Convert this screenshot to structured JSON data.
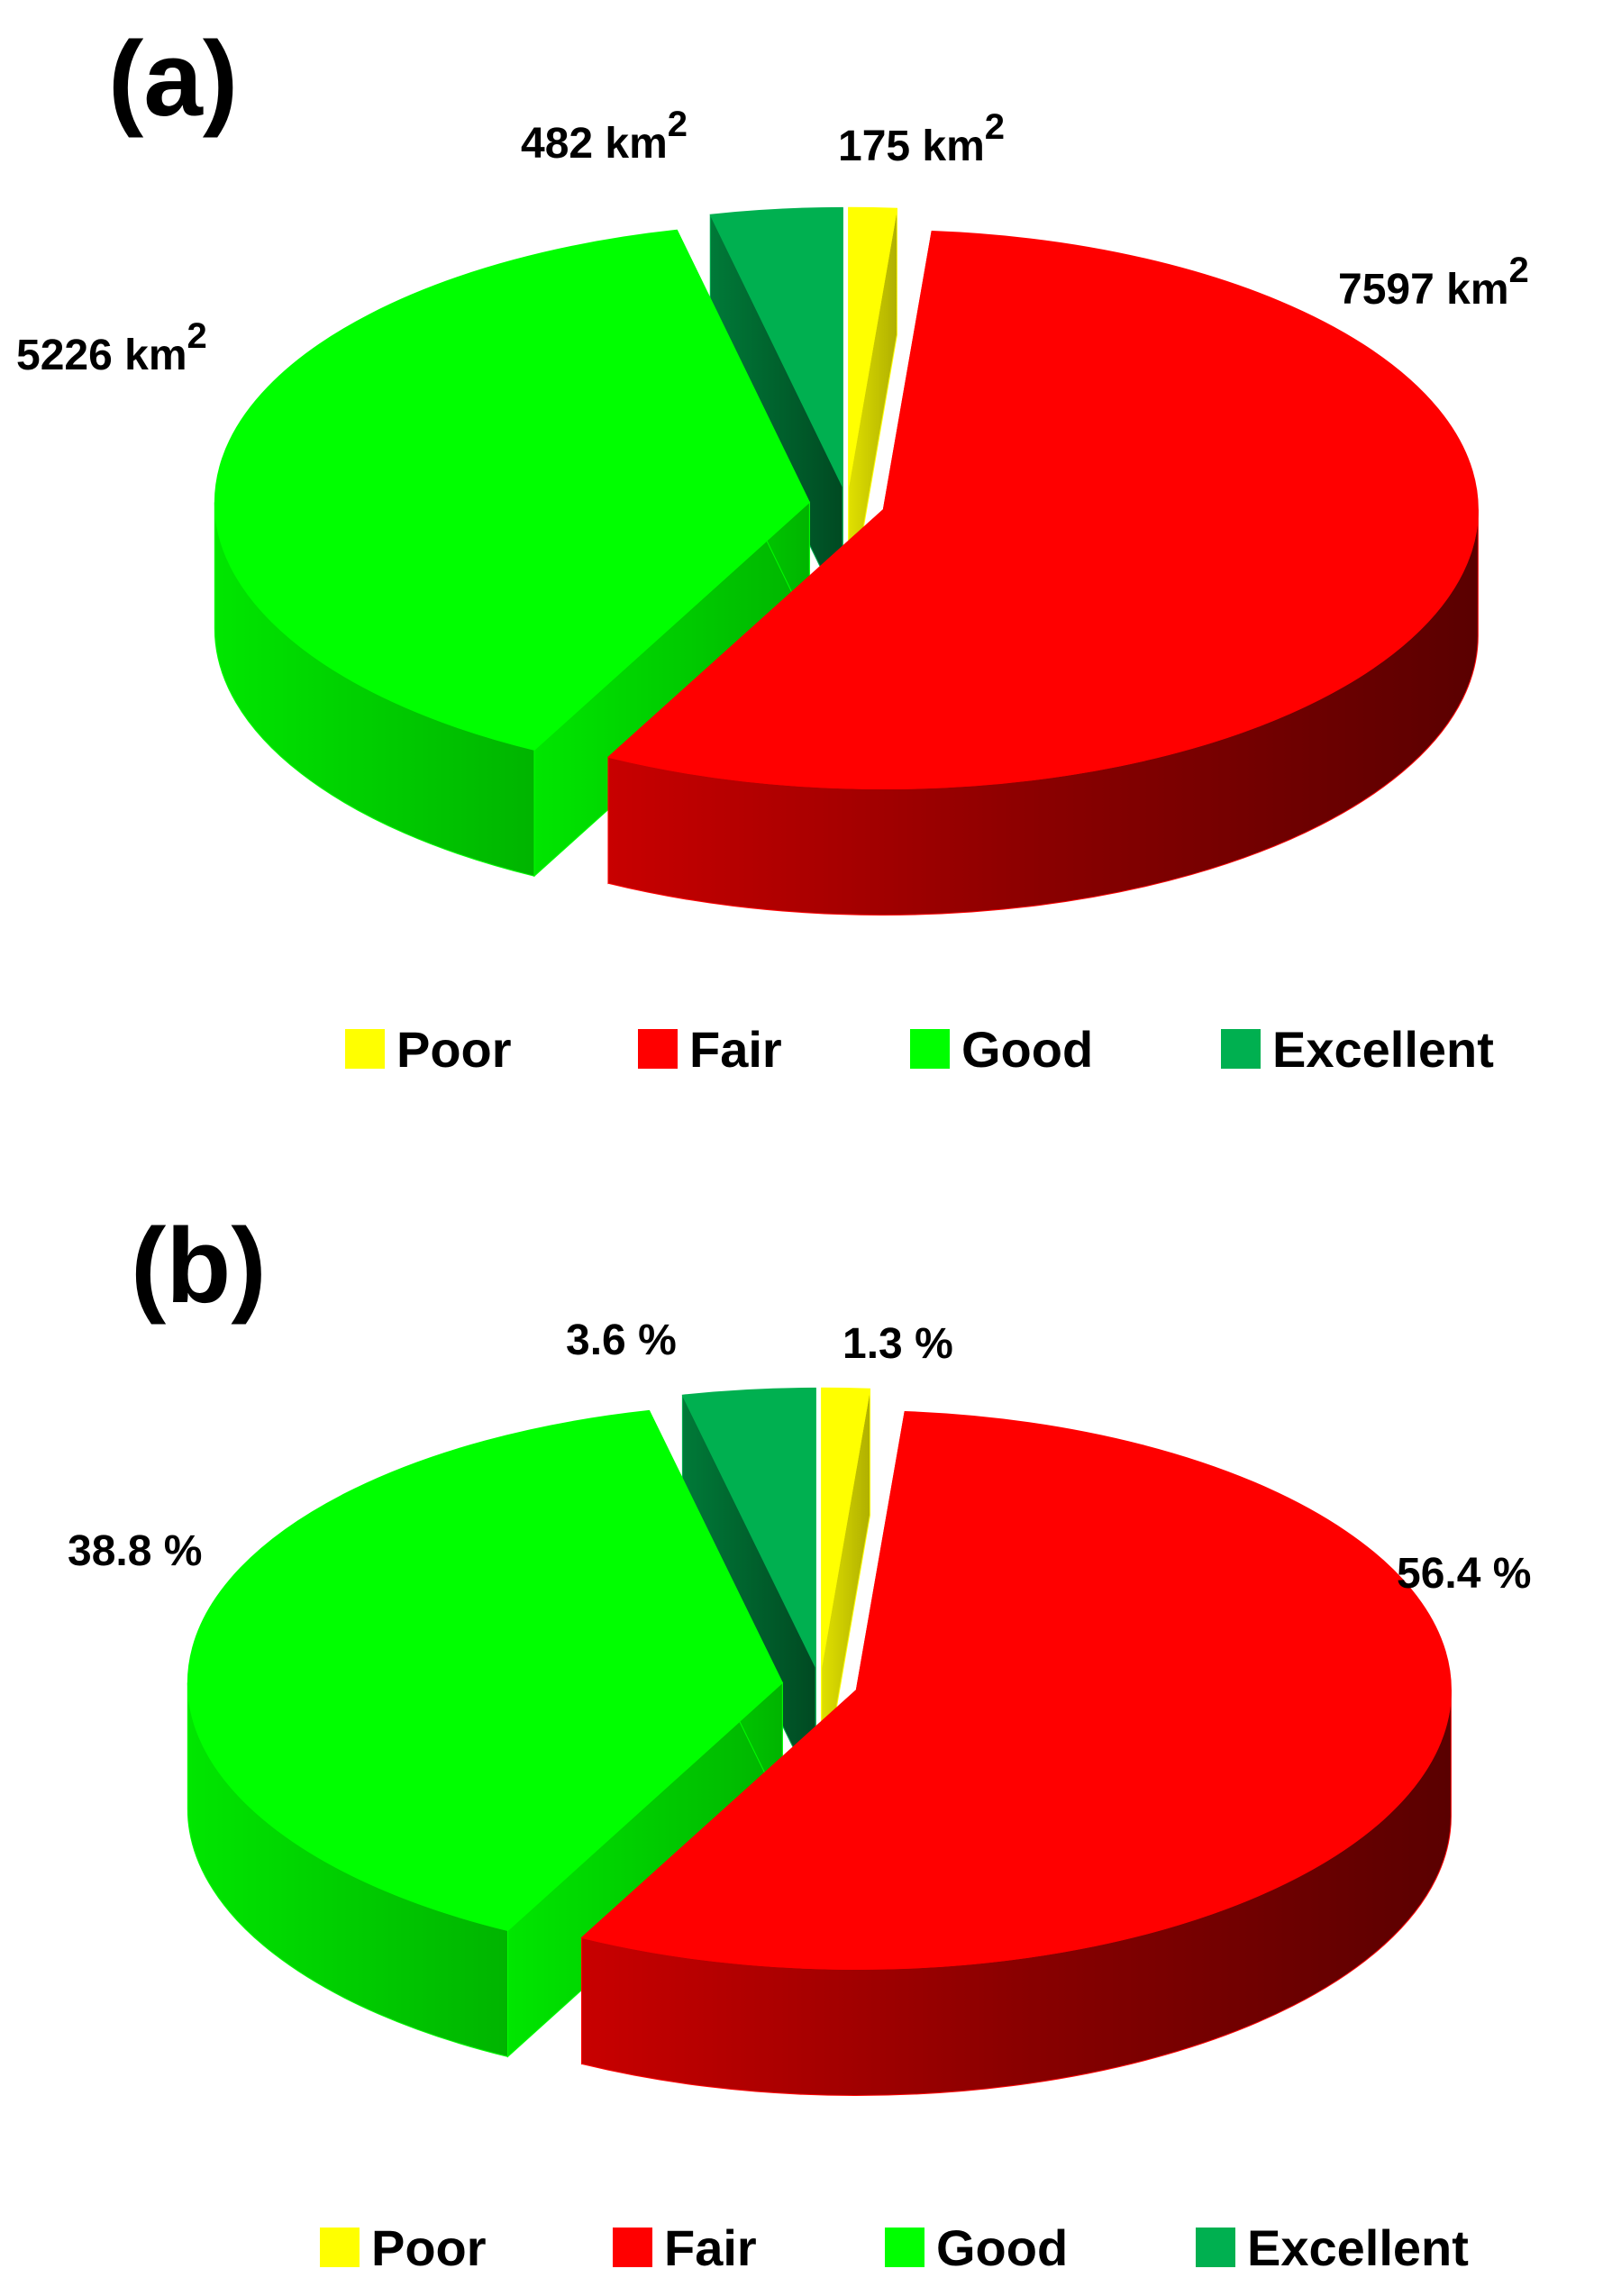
{
  "colors": {
    "Poor": "#ffff00",
    "Fair": "#ff0000",
    "Good": "#00ff00",
    "Excellent": "#00b050"
  },
  "chart_data": [
    {
      "type": "pie",
      "panel_label": "(a)",
      "categories": [
        "Poor",
        "Fair",
        "Good",
        "Excellent"
      ],
      "values": [
        175,
        7597,
        5226,
        482
      ],
      "data_labels": [
        "175 km",
        "7597 km",
        "5226 km",
        "482 km"
      ],
      "label_superscript": "2",
      "legend": [
        "Poor",
        "Fair",
        "Good",
        "Excellent"
      ],
      "legend_position": "bottom",
      "style": "3d-exploded"
    },
    {
      "type": "pie",
      "panel_label": "(b)",
      "categories": [
        "Poor",
        "Fair",
        "Good",
        "Excellent"
      ],
      "values": [
        1.3,
        56.4,
        38.8,
        3.6
      ],
      "data_labels": [
        "1.3 %",
        "56.4 %",
        "38.8 %",
        "3.6 %"
      ],
      "label_superscript": "",
      "legend": [
        "Poor",
        "Fair",
        "Good",
        "Excellent"
      ],
      "legend_position": "bottom",
      "style": "3d-exploded"
    }
  ]
}
